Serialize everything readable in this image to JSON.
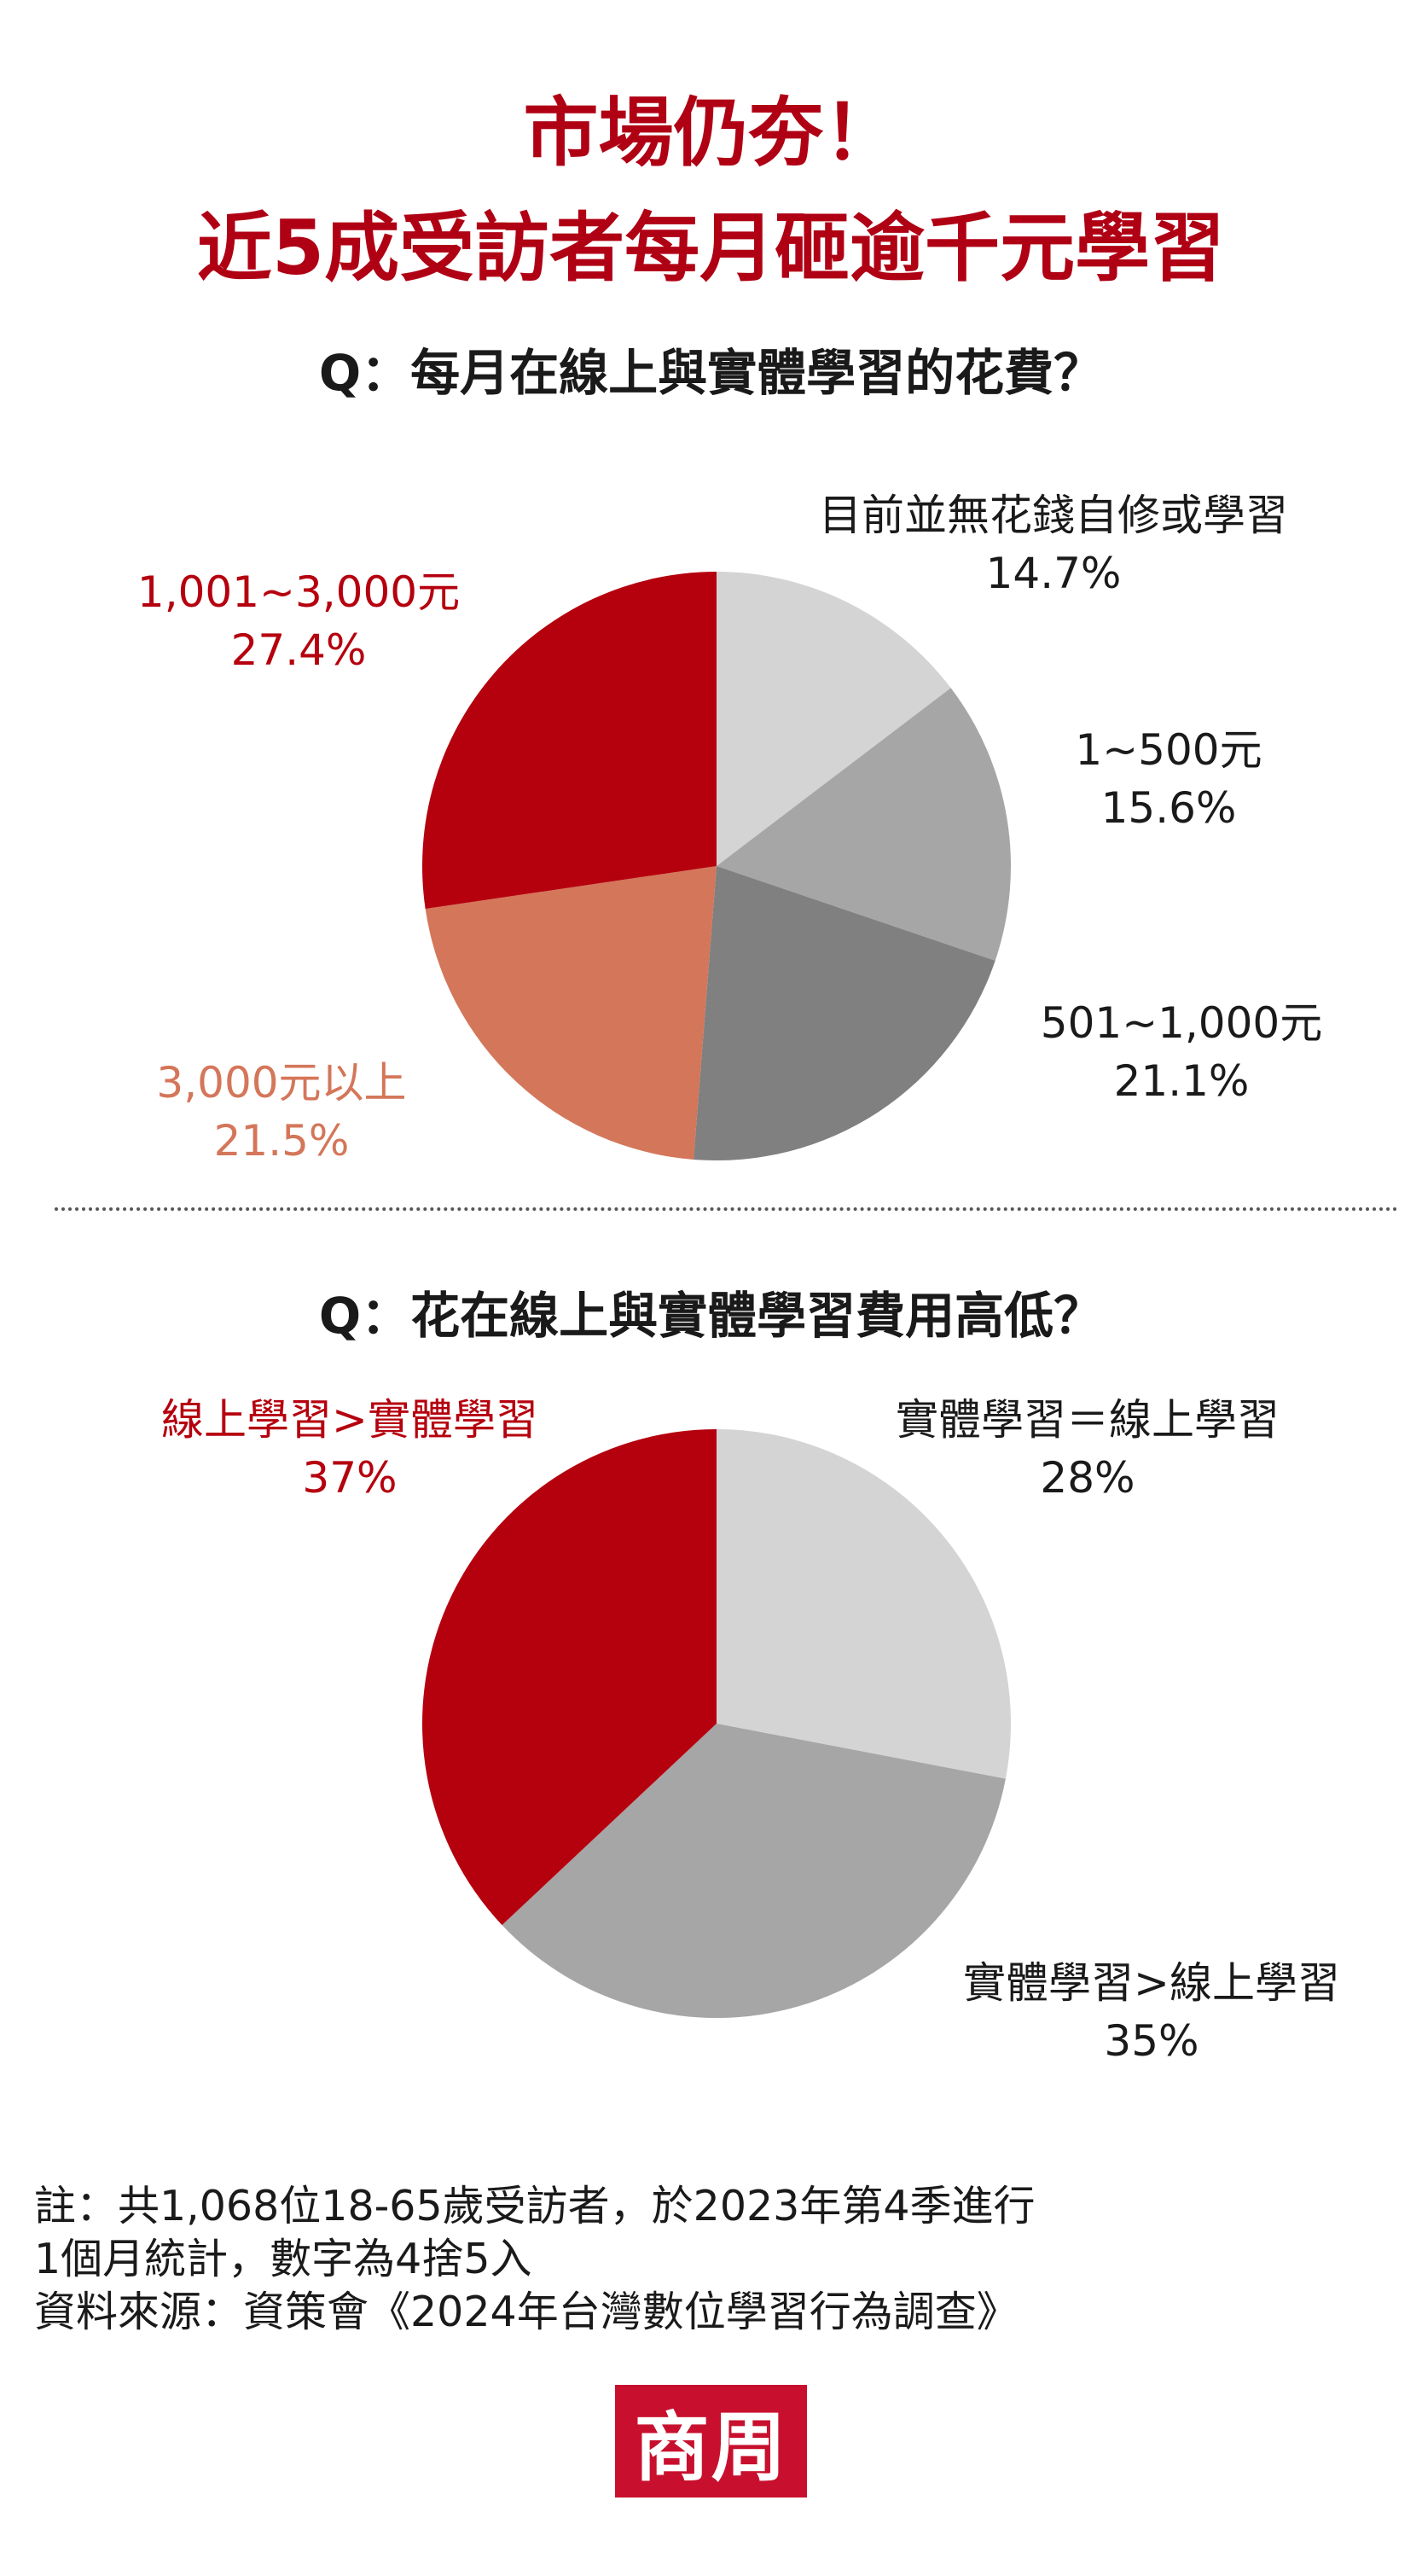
{
  "header": {
    "title_line1": "市場仍夯！",
    "title_line2": "近5成受訪者每月砸逾千元學習"
  },
  "chart_data": [
    {
      "type": "pie",
      "title": "Q：每月在線上與實體學習的花費？",
      "unit": "%",
      "slices": [
        {
          "label": "目前並無花錢自修或學習",
          "value": 14.7,
          "value_text": "14.7%",
          "color": "#d4d4d4"
        },
        {
          "label": "1~500元",
          "value": 15.6,
          "value_text": "15.6%",
          "color": "#a6a6a6"
        },
        {
          "label": "501~1,000元",
          "value": 21.1,
          "value_text": "21.1%",
          "color": "#808080"
        },
        {
          "label": "3,000元以上",
          "value": 21.5,
          "value_text": "21.5%",
          "color": "#d4765a"
        },
        {
          "label": "1,001~3,000元",
          "value": 27.4,
          "value_text": "27.4%",
          "color": "#b5000e"
        }
      ]
    },
    {
      "type": "pie",
      "title": "Q：花在線上與實體學習費用高低？",
      "unit": "%",
      "slices": [
        {
          "label": "實體學習＝線上學習",
          "value": 28,
          "value_text": "28%",
          "color": "#d4d4d4"
        },
        {
          "label": "實體學習>線上學習",
          "value": 35,
          "value_text": "35%",
          "color": "#a6a6a6"
        },
        {
          "label": "線上學習>實體學習",
          "value": 37,
          "value_text": "37%",
          "color": "#b5000e"
        }
      ]
    }
  ],
  "footnote": {
    "line1": "註：共1,068位18-65歲受訪者，於2023年第4季進行",
    "line2": "1個月統計，數字為4捨5入",
    "line3": "資料來源：資策會《2024年台灣數位學習行為調查》"
  },
  "logo": {
    "text": "商周",
    "color": "#c8102e"
  }
}
